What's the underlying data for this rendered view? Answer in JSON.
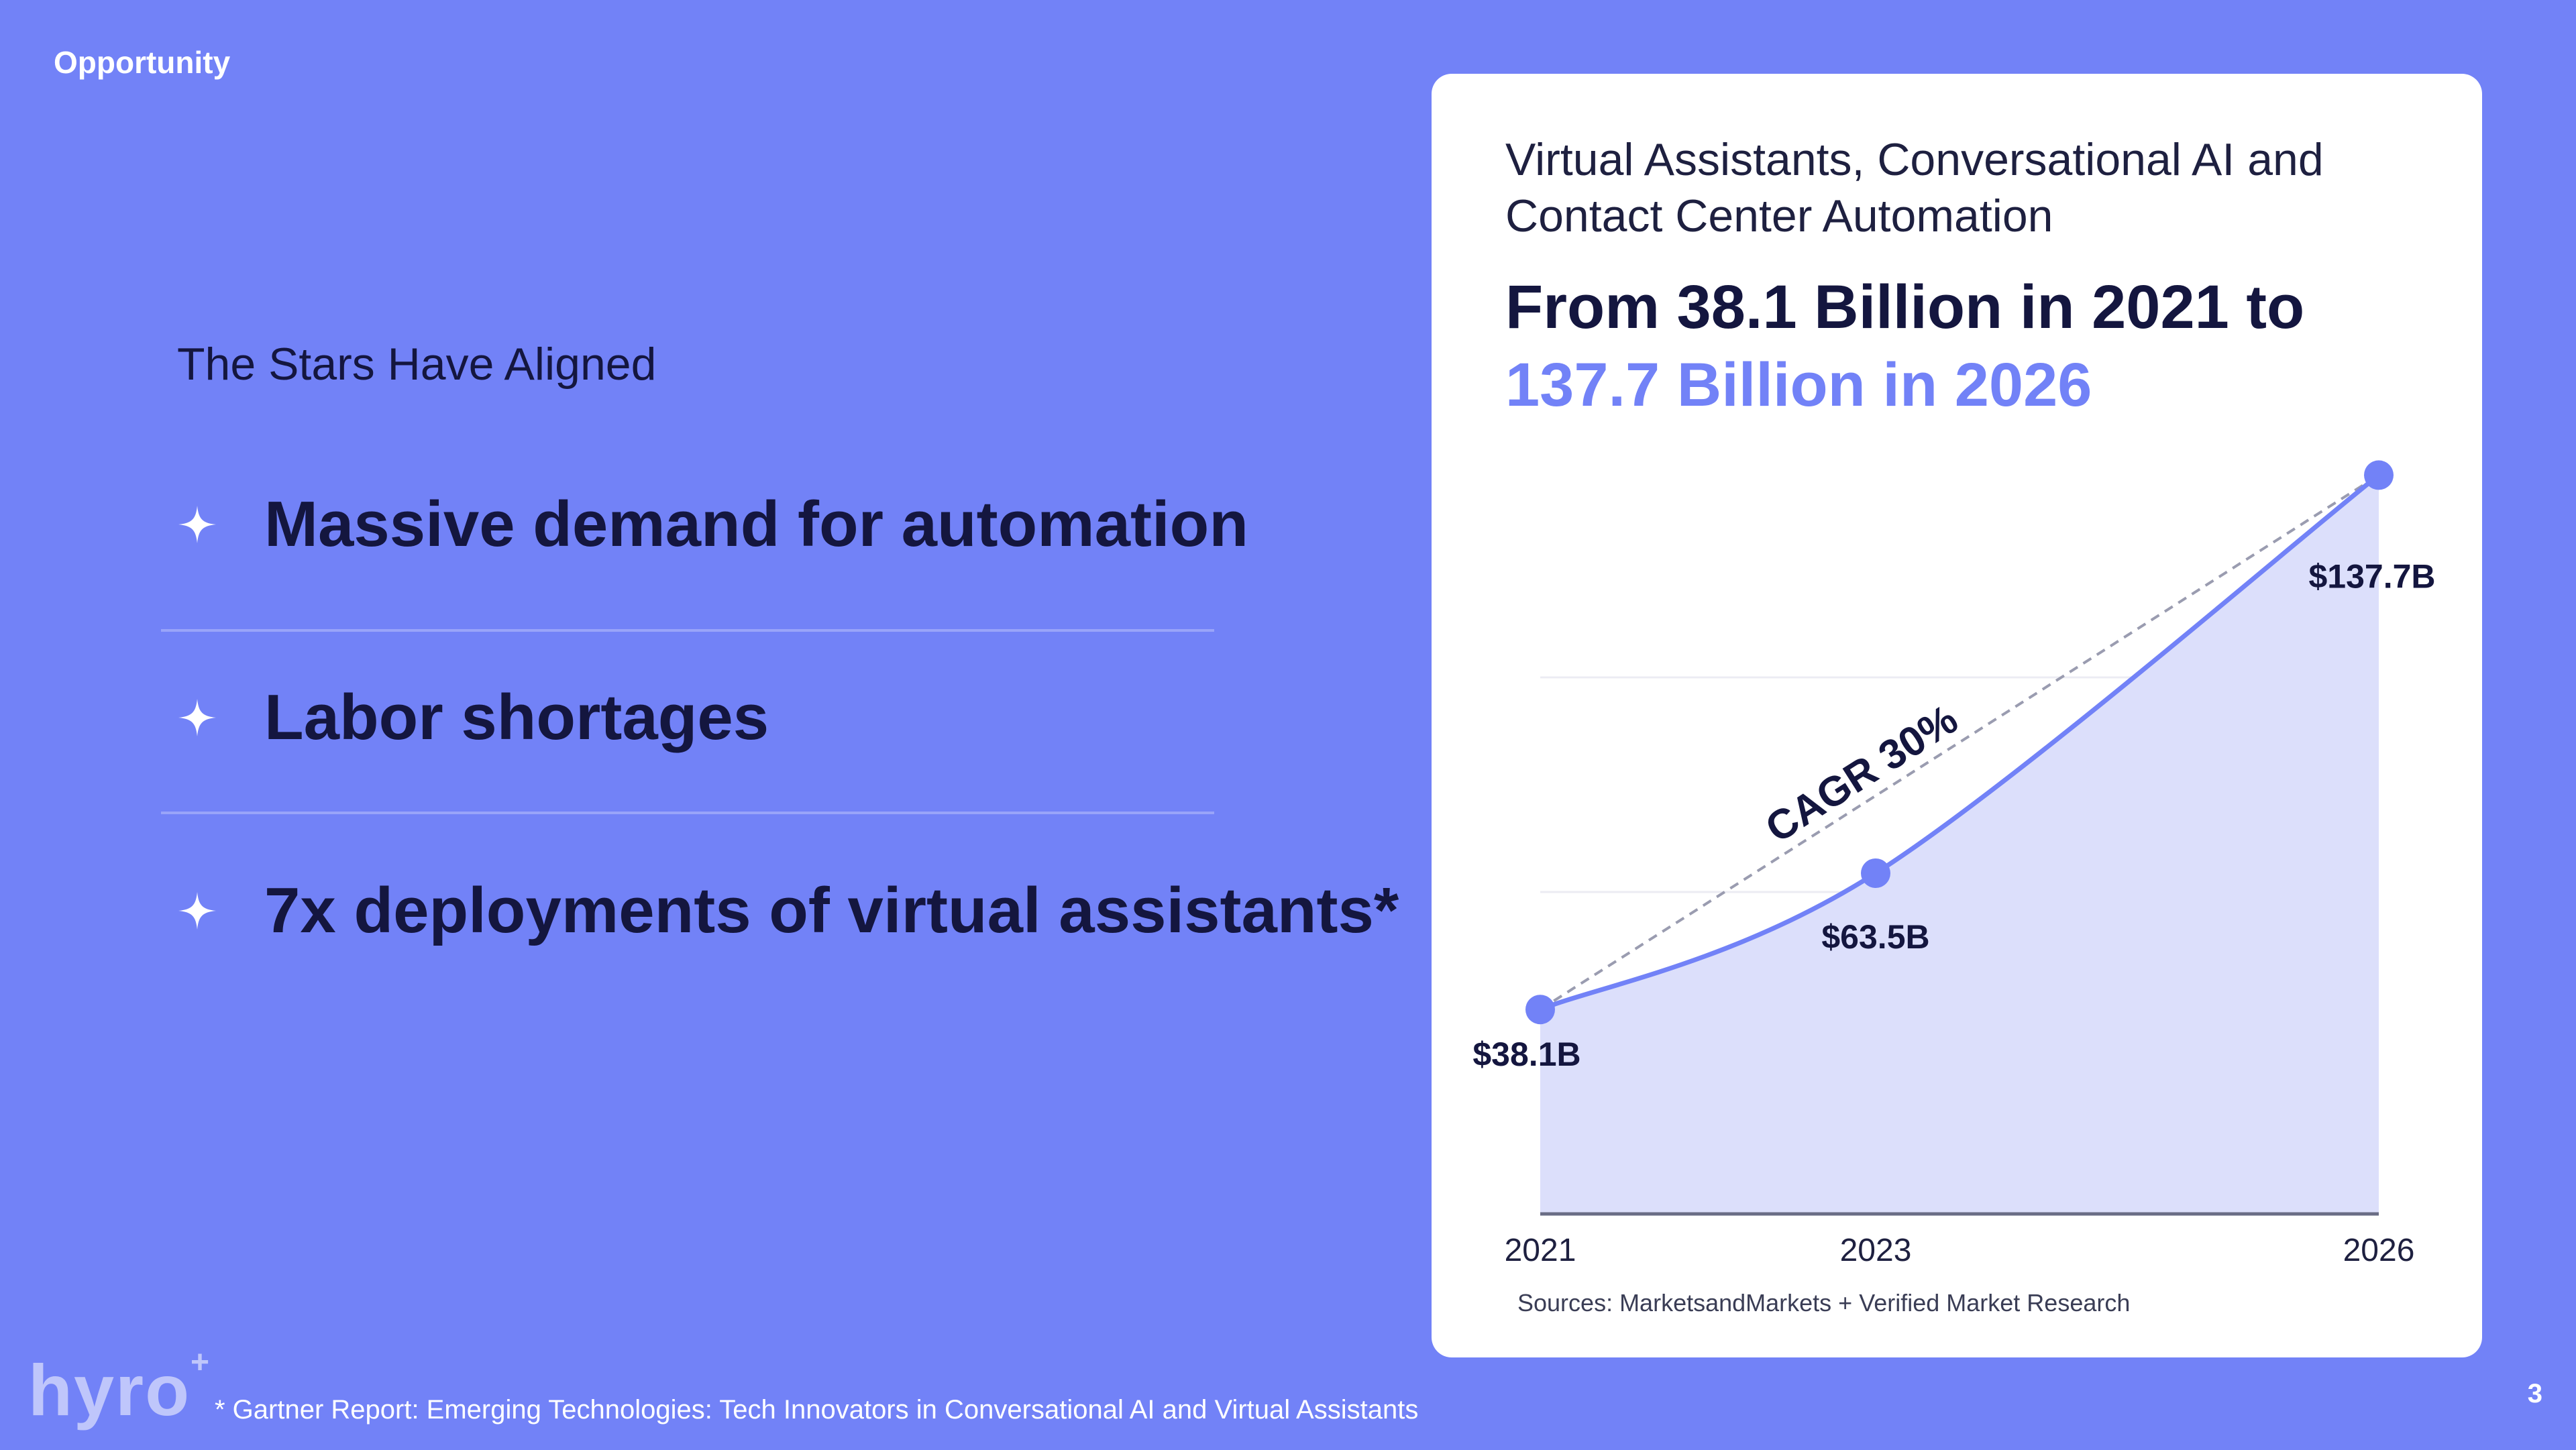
{
  "section_label": "Opportunity",
  "kicker": "The Stars Have Aligned",
  "bullets": [
    {
      "text": "Massive demand for automation",
      "icon": "sparkle-icon"
    },
    {
      "text": "Labor shortages",
      "icon": "sparkle-icon"
    },
    {
      "text": "7x deployments of virtual assistants*",
      "icon": "sparkle-icon"
    }
  ],
  "card": {
    "subtitle_line1": "Virtual Assistants, Conversational AI and",
    "subtitle_line2": "Contact Center Automation",
    "headline_line1": "From 38.1 Billion in 2021 to",
    "headline_line2": "137.7 Billion in 2026",
    "source": "Sources: MarketsandMarkets + Verified Market Research"
  },
  "chart_data": {
    "type": "area",
    "x": [
      2021,
      2023,
      2026
    ],
    "categories": [
      "2021",
      "2023",
      "2026"
    ],
    "values": [
      38.1,
      63.5,
      137.7
    ],
    "data_labels": [
      "$38.1B",
      "$63.5B",
      "$137.7B"
    ],
    "annotation": "CAGR 30%",
    "ylim": [
      0,
      150
    ],
    "grid": true,
    "colors": {
      "line": "#7282f7",
      "fill": "#dcdffb",
      "trend": "#9a9cb0",
      "axis": "#6a6d85",
      "grid": "#ececf3"
    }
  },
  "footnote": "* Gartner Report: Emerging Technologies: Tech Innovators in Conversational AI and Virtual Assistants",
  "logo_text": "hyro",
  "page_number": "3",
  "colors": {
    "background": "#7282f7",
    "text_dark": "#14163f",
    "accent": "#7282f7",
    "card": "#ffffff"
  }
}
